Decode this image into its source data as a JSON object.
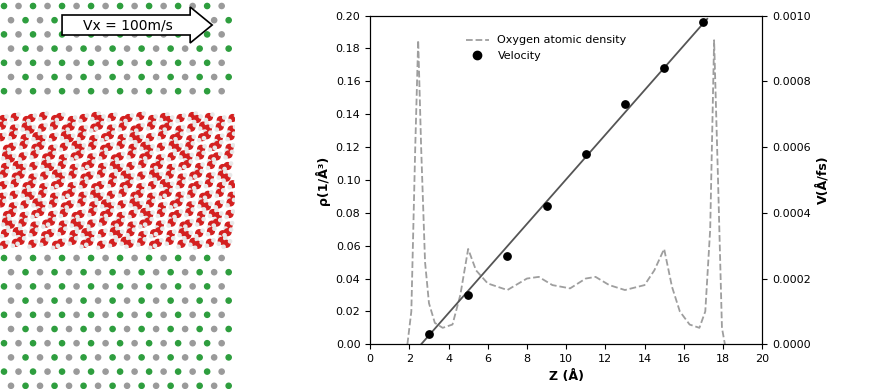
{
  "chart_data": {
    "type": "line",
    "annotations": [
      "Vx = 100m/s"
    ],
    "xlabel": "Z (Å)",
    "ylabel": "ρ(1/Å³)",
    "y2label": "V(Å/fs)",
    "xlim": [
      0,
      20
    ],
    "xticks": [
      0,
      2,
      4,
      6,
      8,
      10,
      12,
      14,
      16,
      18,
      20
    ],
    "ylim": [
      0,
      0.2
    ],
    "yticks": [
      {
        "value": 0,
        "label": "0.00"
      },
      {
        "value": 0.02,
        "label": "0.02"
      },
      {
        "value": 0.04,
        "label": "0.04"
      },
      {
        "value": 0.06,
        "label": "0.06"
      },
      {
        "value": 0.08,
        "label": "0.08"
      },
      {
        "value": 0.1,
        "label": "0.10"
      },
      {
        "value": 0.12,
        "label": "0.12"
      },
      {
        "value": 0.14,
        "label": "0.14"
      },
      {
        "value": 0.16,
        "label": "0.16"
      },
      {
        "value": 0.18,
        "label": "0.18"
      },
      {
        "value": 0.2,
        "label": "0.20"
      }
    ],
    "y2lim": [
      0,
      0.001
    ],
    "y2ticks": [
      {
        "value": 0,
        "label": "0.0000"
      },
      {
        "value": 0.0002,
        "label": "0.0002"
      },
      {
        "value": 0.0004,
        "label": "0.0004"
      },
      {
        "value": 0.0006,
        "label": "0.0006"
      },
      {
        "value": 0.0008,
        "label": "0.0008"
      },
      {
        "value": 0.001,
        "label": "0.0010"
      }
    ],
    "legend": "upper center",
    "grid": false,
    "series": [
      {
        "name": "Oxygen atomic density",
        "type": "line",
        "line_style": "dashed",
        "color": "#9e9e9e",
        "x": [
          1.9,
          2.1,
          2.3,
          2.45,
          2.6,
          2.8,
          3.0,
          3.3,
          3.7,
          4.2,
          4.6,
          5.0,
          5.4,
          6.0,
          7.0,
          8.0,
          8.6,
          9.3,
          10.2,
          11.0,
          11.5,
          12.2,
          13.0,
          14.0,
          14.5,
          15.0,
          15.4,
          15.8,
          16.3,
          16.8,
          17.1,
          17.35,
          17.55,
          17.75,
          17.95,
          18.1
        ],
        "values": [
          0,
          0.02,
          0.12,
          0.185,
          0.12,
          0.05,
          0.025,
          0.013,
          0.01,
          0.012,
          0.03,
          0.058,
          0.045,
          0.037,
          0.033,
          0.04,
          0.041,
          0.036,
          0.034,
          0.04,
          0.041,
          0.036,
          0.033,
          0.036,
          0.045,
          0.058,
          0.035,
          0.02,
          0.012,
          0.01,
          0.02,
          0.07,
          0.185,
          0.1,
          0.01,
          0
        ]
      },
      {
        "name": "Velocity",
        "type": "scatter",
        "marker": "circle",
        "color": "#000000",
        "axis": "y2",
        "x": [
          3,
          5,
          7,
          9,
          11,
          13,
          15,
          17
        ],
        "values": [
          3e-05,
          0.00015,
          0.00027,
          0.00042,
          0.00058,
          0.00073,
          0.00084,
          0.00098
        ]
      },
      {
        "type": "line",
        "line_style": "solid",
        "color": "#555555",
        "axis": "y2",
        "x": [
          2.6,
          17.2
        ],
        "values": [
          0,
          0.00099
        ]
      }
    ]
  }
}
